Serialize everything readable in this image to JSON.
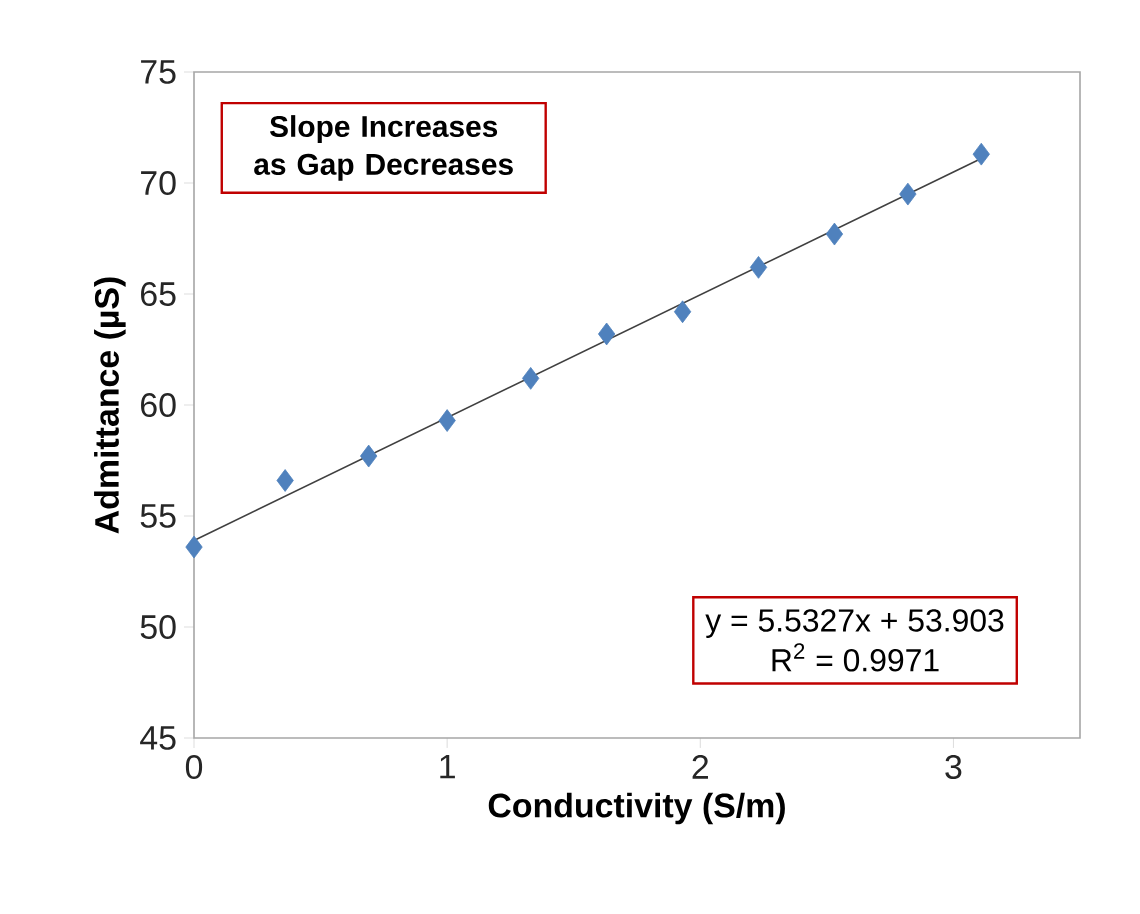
{
  "chart_data": {
    "type": "scatter",
    "xlabel": "Conductivity (S/m)",
    "ylabel": "Admittance (µS)",
    "xlim": [
      0,
      3.5
    ],
    "ylim": [
      45,
      75
    ],
    "xticks": [
      0,
      1,
      2,
      3
    ],
    "yticks": [
      45,
      50,
      55,
      60,
      65,
      70,
      75
    ],
    "grid": false,
    "annotations": [
      "Slope Increases as Gap Decreases",
      "y = 5.5327x + 53.903",
      "R$^{2}$ = 0.9971"
    ],
    "series": [
      {
        "marker": "diamond",
        "color": "#4f81bd",
        "x": [
          0,
          0.36,
          0.69,
          1.0,
          1.33,
          1.63,
          1.93,
          2.23,
          2.53,
          2.82,
          3.11
        ],
        "values": [
          53.6,
          56.6,
          57.7,
          59.3,
          61.2,
          63.2,
          64.2,
          66.2,
          67.7,
          69.5,
          71.3
        ]
      },
      {
        "type": "line",
        "marker": "none",
        "color": "#404040",
        "line_style": "solid",
        "x": [
          0,
          3.11
        ],
        "values": [
          53.9,
          71.1
        ]
      }
    ]
  }
}
